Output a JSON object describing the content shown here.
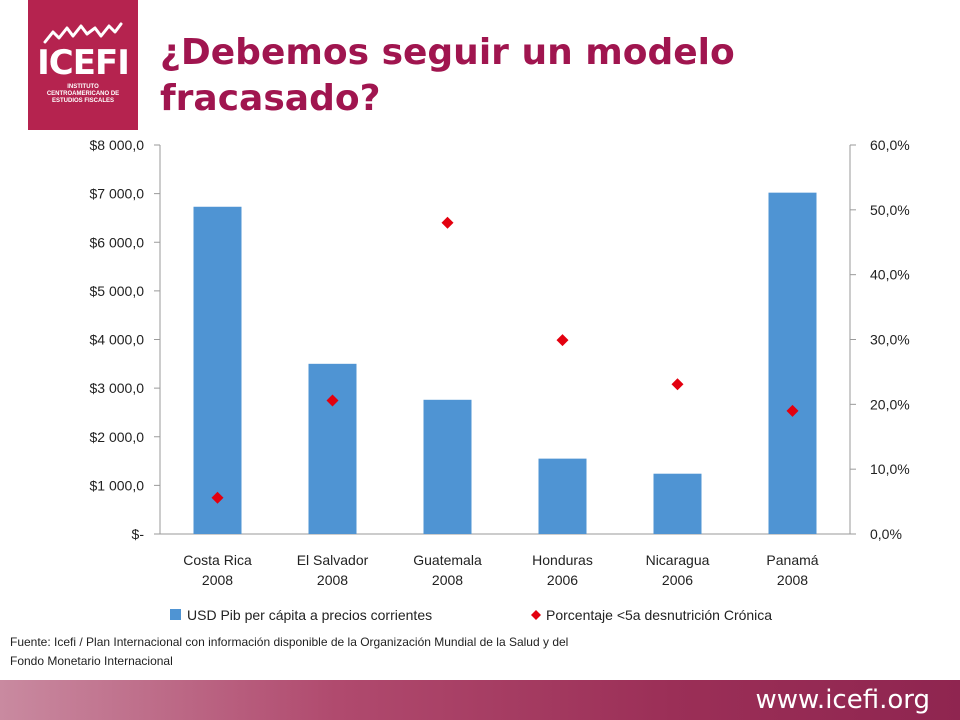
{
  "header": {
    "logo_text": "ICEFI",
    "logo_subtitle": "INSTITUTO CENTROAMERICANO DE ESTUDIOS FISCALES",
    "title": "¿Debemos seguir un modelo fracasado?"
  },
  "colors": {
    "brand": "#b5234f",
    "title": "#a0154f",
    "bar": "#4f94d3",
    "marker": "#e3000f"
  },
  "chart_data": {
    "type": "bar",
    "categories": [
      "Costa Rica 2008",
      "El Salvador 2008",
      "Guatemala 2008",
      "Honduras 2006",
      "Nicaragua 2006",
      "Panamá 2008"
    ],
    "series": [
      {
        "name": "USD Pib per cápita a precios corrientes",
        "type": "bar",
        "axis": "left",
        "values": [
          6730,
          3500,
          2760,
          1550,
          1240,
          7020
        ]
      },
      {
        "name": "Porcentaje <5a desnutrición Crónica",
        "type": "scatter",
        "axis": "right",
        "values": [
          5.6,
          20.6,
          48.0,
          29.9,
          23.1,
          19.0
        ]
      }
    ],
    "y_left": {
      "ylim": [
        0,
        8000
      ],
      "ticks": [
        "$-",
        "$1 000,0",
        "$2 000,0",
        "$3 000,0",
        "$4 000,0",
        "$5 000,0",
        "$6 000,0",
        "$7 000,0",
        "$8 000,0"
      ]
    },
    "y_right": {
      "ylim": [
        0,
        60
      ],
      "ticks": [
        "0,0%",
        "10,0%",
        "20,0%",
        "30,0%",
        "40,0%",
        "50,0%",
        "60,0%"
      ]
    },
    "legend_position": "bottom",
    "grid": false
  },
  "source_note": "Fuente: Icefi / Plan Internacional con información disponible de la Organización Mundial de la Salud y del Fondo Monetario Internacional",
  "footer": {
    "url": "www.icefi.org"
  }
}
